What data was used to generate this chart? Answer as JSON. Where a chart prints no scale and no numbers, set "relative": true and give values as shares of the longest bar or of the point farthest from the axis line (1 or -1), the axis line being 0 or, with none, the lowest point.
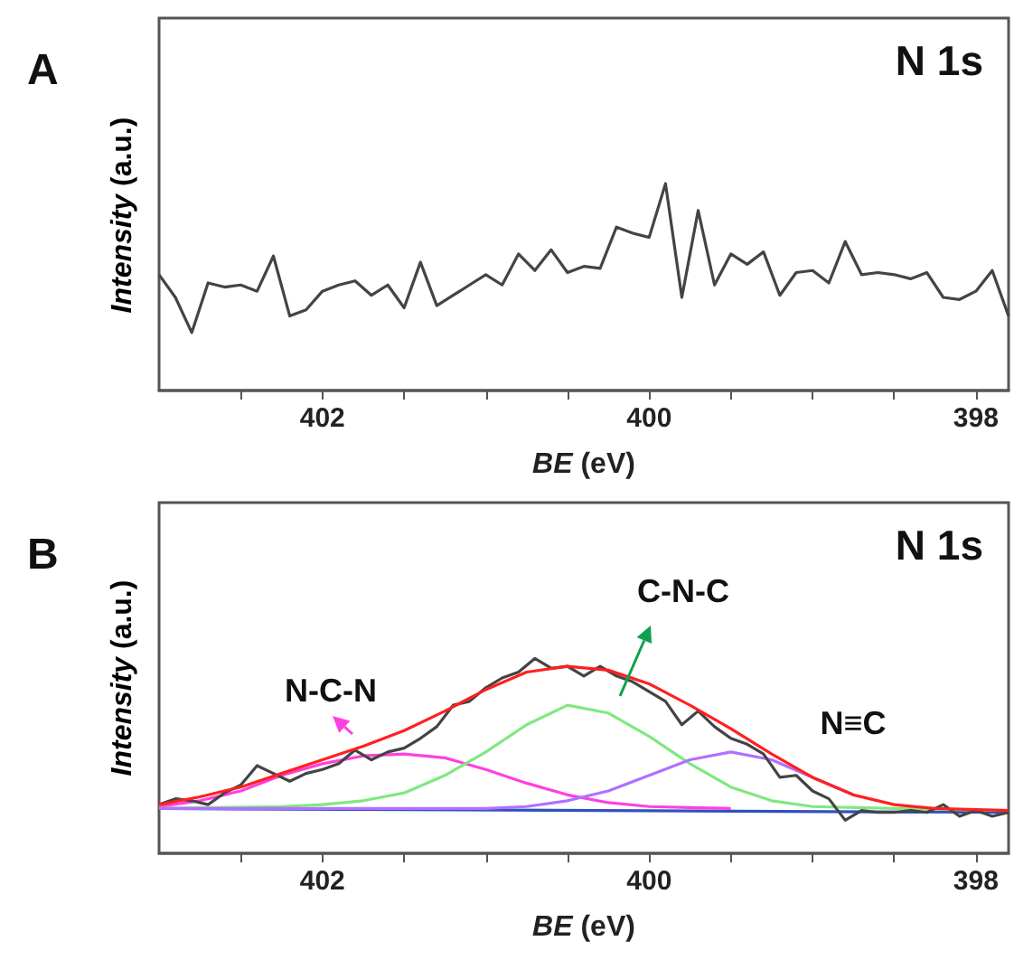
{
  "chart_data": [
    {
      "type": "line",
      "title": "A",
      "xlabel": "BE (eV)",
      "ylabel": "Intensity (a.u.)",
      "annotations": [
        "N 1s"
      ],
      "relative": true,
      "xlim": [
        403.0,
        397.8
      ],
      "xticks": [
        {
          "value": 402.5,
          "label": null
        },
        402,
        {
          "value": 401.5,
          "label": null
        },
        {
          "value": 401,
          "label": null
        },
        {
          "value": 400.5,
          "label": null
        },
        400,
        {
          "value": 399.5,
          "label": null
        },
        {
          "value": 399,
          "label": null
        },
        {
          "value": 398.5,
          "label": null
        },
        398
      ],
      "color": "#444444",
      "x": [
        403.0,
        402.9,
        402.8,
        402.7,
        402.6,
        402.5,
        402.4,
        402.3,
        402.2,
        402.1,
        402.0,
        401.9,
        401.8,
        401.7,
        401.6,
        401.5,
        401.4,
        401.3,
        401.2,
        401.1,
        401.0,
        400.9,
        400.8,
        400.7,
        400.6,
        400.5,
        400.4,
        400.3,
        400.2,
        400.1,
        400.0,
        399.9,
        399.8,
        399.7,
        399.6,
        399.5,
        399.4,
        399.3,
        399.2,
        399.1,
        399.0,
        398.9,
        398.8,
        398.7,
        398.6,
        398.5,
        398.4,
        398.3,
        398.2,
        398.1,
        398.0,
        397.9,
        397.8
      ],
      "values": [
        0.56,
        0.45,
        0.28,
        0.52,
        0.5,
        0.51,
        0.48,
        0.65,
        0.36,
        0.39,
        0.48,
        0.51,
        0.53,
        0.46,
        0.51,
        0.4,
        0.62,
        0.41,
        0.46,
        0.51,
        0.56,
        0.51,
        0.66,
        0.58,
        0.68,
        0.57,
        0.6,
        0.59,
        0.79,
        0.76,
        0.74,
        1.0,
        0.45,
        0.87,
        0.51,
        0.66,
        0.61,
        0.67,
        0.46,
        0.57,
        0.58,
        0.52,
        0.72,
        0.56,
        0.57,
        0.56,
        0.54,
        0.57,
        0.45,
        0.44,
        0.48,
        0.58,
        0.36
      ]
    },
    {
      "type": "line",
      "title": "B",
      "xlabel": "BE (eV)",
      "ylabel": "Intensity (a.u.)",
      "annotations": [
        "N 1s",
        "N-C-N",
        "C-N-C",
        "N≡C"
      ],
      "relative": true,
      "xlim": [
        403.0,
        397.8
      ],
      "xticks": [
        {
          "value": 402.5,
          "label": null
        },
        402,
        {
          "value": 401.5,
          "label": null
        },
        {
          "value": 401,
          "label": null
        },
        {
          "value": 400.5,
          "label": null
        },
        400,
        {
          "value": 399.5,
          "label": null
        },
        {
          "value": 399,
          "label": null
        },
        {
          "value": 398.5,
          "label": null
        },
        398
      ],
      "series": [
        {
          "color": "#3050c0",
          "x": [
            403.0,
            397.8
          ],
          "values": [
            0.23,
            0.21
          ]
        },
        {
          "color": "#ff40e0",
          "x": [
            403,
            402.75,
            402.5,
            402.25,
            402,
            401.75,
            401.5,
            401.25,
            401,
            400.75,
            400.5,
            400.25,
            400,
            399.5
          ],
          "values": [
            0.24,
            0.27,
            0.32,
            0.4,
            0.46,
            0.5,
            0.51,
            0.49,
            0.43,
            0.36,
            0.3,
            0.26,
            0.24,
            0.23
          ]
        },
        {
          "color": "#80e880",
          "x": [
            403,
            402.25,
            402,
            401.75,
            401.5,
            401.25,
            401,
            400.75,
            400.5,
            400.25,
            400,
            399.75,
            399.5,
            399.25,
            399,
            398.5,
            397.8
          ],
          "values": [
            0.23,
            0.24,
            0.25,
            0.27,
            0.31,
            0.4,
            0.52,
            0.66,
            0.76,
            0.72,
            0.6,
            0.46,
            0.34,
            0.27,
            0.24,
            0.23,
            0.22
          ]
        },
        {
          "color": "#b070ff",
          "x": [
            403,
            401,
            400.75,
            400.5,
            400.25,
            400,
            399.75,
            399.5,
            399.25,
            399,
            398.75
          ],
          "values": [
            0.23,
            0.23,
            0.24,
            0.27,
            0.32,
            0.4,
            0.48,
            0.52,
            0.48,
            0.39,
            0.3
          ]
        },
        {
          "color": "#444444",
          "x": [
            403.0,
            402.9,
            402.8,
            402.7,
            402.6,
            402.5,
            402.4,
            402.3,
            402.2,
            402.1,
            402.0,
            401.9,
            401.8,
            401.7,
            401.6,
            401.5,
            401.4,
            401.3,
            401.2,
            401.1,
            401.0,
            400.9,
            400.8,
            400.7,
            400.6,
            400.5,
            400.4,
            400.3,
            400.2,
            400.1,
            400.0,
            399.9,
            399.8,
            399.7,
            399.6,
            399.5,
            399.4,
            399.3,
            399.2,
            399.1,
            399.0,
            398.9,
            398.8,
            398.7,
            398.6,
            398.5,
            398.4,
            398.3,
            398.2,
            398.1,
            398.0,
            397.9,
            397.8
          ],
          "values": [
            0.25,
            0.28,
            0.27,
            0.25,
            0.31,
            0.35,
            0.45,
            0.41,
            0.37,
            0.41,
            0.43,
            0.46,
            0.53,
            0.48,
            0.52,
            0.54,
            0.59,
            0.65,
            0.76,
            0.78,
            0.85,
            0.9,
            0.93,
            1.0,
            0.95,
            0.96,
            0.91,
            0.96,
            0.91,
            0.88,
            0.83,
            0.78,
            0.66,
            0.73,
            0.65,
            0.59,
            0.56,
            0.51,
            0.39,
            0.4,
            0.32,
            0.28,
            0.17,
            0.22,
            0.21,
            0.21,
            0.22,
            0.21,
            0.25,
            0.19,
            0.22,
            0.19,
            0.21
          ]
        },
        {
          "color": "#ff2020",
          "x": [
            403,
            402.75,
            402.5,
            402.25,
            402,
            401.75,
            401.5,
            401.25,
            401,
            400.75,
            400.5,
            400.25,
            400,
            399.75,
            399.5,
            399.25,
            399,
            398.75,
            398.5,
            398.25,
            397.8
          ],
          "values": [
            0.25,
            0.29,
            0.34,
            0.41,
            0.48,
            0.55,
            0.63,
            0.73,
            0.84,
            0.93,
            0.96,
            0.94,
            0.87,
            0.76,
            0.64,
            0.51,
            0.39,
            0.3,
            0.25,
            0.23,
            0.22
          ]
        }
      ]
    }
  ]
}
